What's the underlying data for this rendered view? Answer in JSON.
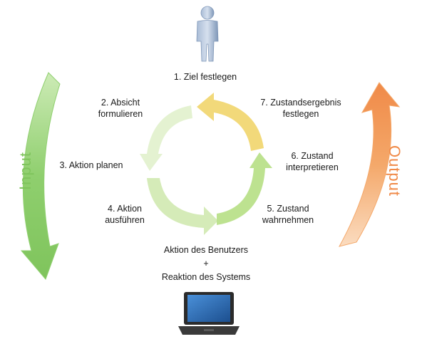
{
  "side_labels": {
    "input": "Input",
    "output": "Output"
  },
  "cycle_steps": [
    {
      "line1": "1. Ziel festlegen",
      "line2": ""
    },
    {
      "line1": "2. Absicht",
      "line2": "formulieren"
    },
    {
      "line1": "3. Aktion planen",
      "line2": ""
    },
    {
      "line1": "4. Aktion",
      "line2": "ausführen"
    },
    {
      "line1": "5. Zustand",
      "line2": "wahrnehmen"
    },
    {
      "line1": "6. Zustand",
      "line2": "interpretieren"
    },
    {
      "line1": "7. Zustandsergebnis",
      "line2": "festlegen"
    }
  ],
  "bottom_caption": {
    "line1": "Aktion des Benutzers",
    "line2": "+",
    "line3": "Reaktion des Systems"
  },
  "icons": {
    "top": "person-icon",
    "bottom": "laptop-icon"
  },
  "colors": {
    "input_arrow": "#8fcf6e",
    "output_arrow": "#f4a86a",
    "cycle_yellow": "#f1d56b",
    "cycle_green": "#b9e08a",
    "person": "#8fa6c4",
    "laptop": "#2b2b2b"
  }
}
